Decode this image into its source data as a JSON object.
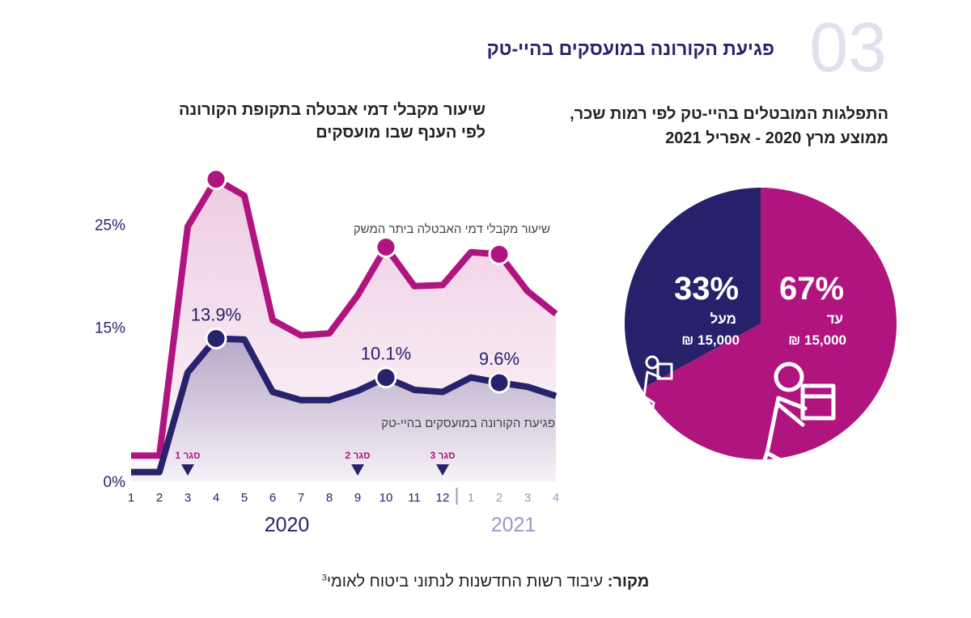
{
  "header": {
    "number": "03",
    "title": "פגיעת הקורונה במועסקים בהיי-טק"
  },
  "chart_data": [
    {
      "type": "line",
      "title": [
        "שיעור מקבלי דמי אבטלה בתקופת הקורונה",
        "לפי הענף שבו מועסקים"
      ],
      "categories": [
        "1",
        "2",
        "3",
        "4",
        "5",
        "6",
        "7",
        "8",
        "9",
        "10",
        "11",
        "12",
        "1",
        "2",
        "3",
        "4"
      ],
      "x_groups": [
        {
          "label": "2020",
          "from": 0,
          "to": 11,
          "color": "#28226e"
        },
        {
          "label": "2021",
          "from": 12,
          "to": 15,
          "color": "#9b97c6"
        }
      ],
      "ylim": [
        0,
        30
      ],
      "yticks": [
        {
          "value": 0,
          "label": "0%"
        },
        {
          "value": 15,
          "label": "15%"
        },
        {
          "value": 25,
          "label": "25%"
        }
      ],
      "grid": false,
      "series": [
        {
          "name": "שיעור מקבלי דמי האבטלה ביתר המשק",
          "color": "#b0147f",
          "values": [
            2.5,
            2.5,
            24.8,
            29.4,
            27.8,
            15.7,
            14.2,
            14.4,
            18.1,
            22.8,
            19.0,
            19.1,
            22.3,
            22.1,
            18.5,
            16.3
          ]
        },
        {
          "name": "פגיעת הקורונה במועסקים בהיי-טק",
          "color": "#27226c",
          "values": [
            0.9,
            0.9,
            10.6,
            13.9,
            13.8,
            8.7,
            7.9,
            7.9,
            8.8,
            10.1,
            8.9,
            8.7,
            10.1,
            9.6,
            9.2,
            8.3
          ],
          "value_labels": [
            null,
            null,
            null,
            "13.9%",
            null,
            null,
            null,
            null,
            null,
            "10.1%",
            null,
            null,
            null,
            "9.6%",
            null,
            null
          ]
        }
      ],
      "annotations": [
        {
          "label": "סגר 1",
          "at": 2
        },
        {
          "label": "סגר 2",
          "at": 8
        },
        {
          "label": "סגר 3",
          "at": 11
        }
      ]
    },
    {
      "type": "pie",
      "title": [
        "התפלגות המובטלים בהיי-טק לפי רמות שכר,",
        "ממוצע מרץ 2020 - אפריל 2021"
      ],
      "categories": [
        "עד",
        "מעל"
      ],
      "sublabels": [
        "15,000 ₪",
        "15,000 ₪"
      ],
      "values": [
        67,
        33
      ],
      "value_labels": [
        "67%",
        "33%"
      ],
      "colors": [
        "#b0147f",
        "#27216b"
      ]
    }
  ],
  "source": {
    "label": "מקור:",
    "text": "עיבוד רשות החדשנות לנתוני ביטוח לאומי",
    "note": "3"
  }
}
